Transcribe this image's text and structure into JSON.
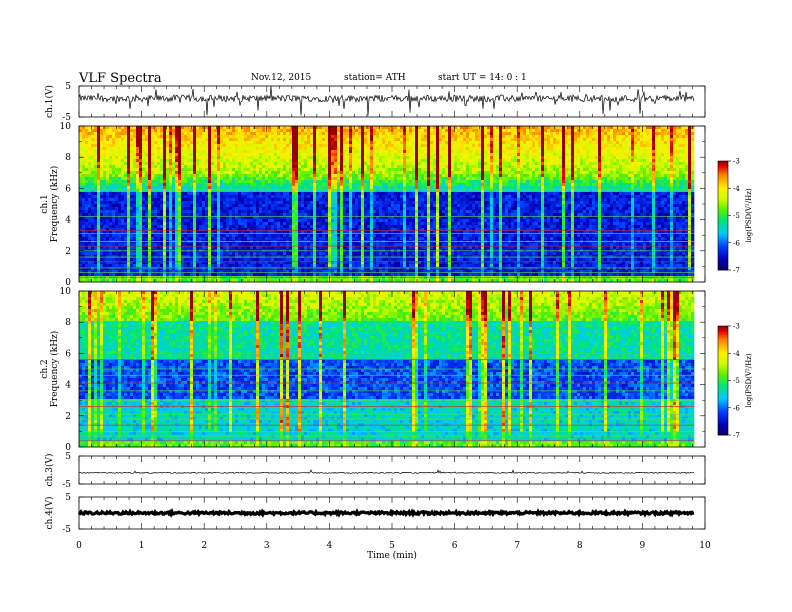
{
  "header": {
    "title": "VLF  Spectra",
    "date": "Nov.12, 2015",
    "station": "station= ATH",
    "start": "start  UT  =    14: 0   : 1"
  },
  "chart_data": [
    {
      "type": "line",
      "ylabel": "ch.1(V)",
      "ylim": [
        -5,
        5
      ],
      "yticks": [
        "5",
        "-5"
      ],
      "description_series": "ch.1 waveform, noisy trace around +1 V with negative spikes to about -5 V",
      "series": [
        {
          "values_range": [
            -5,
            5
          ]
        }
      ]
    },
    {
      "type": "heatmap",
      "ylabel": "ch.1\nFrequency  (kHz)",
      "ylim": [
        0,
        10
      ],
      "yticks": [
        "0",
        "2",
        "4",
        "6",
        "8",
        "10"
      ],
      "colorbar": {
        "label": "log(PSD(V²/Hz)",
        "range": [
          -7,
          -3
        ],
        "ticks": [
          "-3",
          "-4",
          "-5",
          "-6",
          "-7"
        ]
      }
    },
    {
      "type": "heatmap",
      "ylabel": "ch.2\nFrequency  (kHz)",
      "ylim": [
        0,
        10
      ],
      "yticks": [
        "0",
        "2",
        "4",
        "6",
        "8",
        "10"
      ],
      "colorbar": {
        "label": "log(PSD(V²/Hz)",
        "range": [
          -7,
          -3
        ],
        "ticks": [
          "-3",
          "-4",
          "-5",
          "-6",
          "-7"
        ]
      }
    },
    {
      "type": "line",
      "ylabel": "ch.3(V)",
      "ylim": [
        -5,
        5
      ],
      "yticks": [
        "5",
        "-5"
      ],
      "series": [
        {
          "values_range": [
            -1.5,
            -0.5
          ]
        }
      ]
    },
    {
      "type": "line",
      "ylabel": "ch.4(V)",
      "ylim": [
        -5,
        5
      ],
      "yticks": [
        "5",
        "-5"
      ],
      "series": [
        {
          "values_range": [
            -0.5,
            0.5
          ]
        }
      ]
    }
  ],
  "xaxis": {
    "label": "Time  (min)",
    "range": [
      0,
      10
    ],
    "ticks": [
      "0",
      "1",
      "2",
      "3",
      "4",
      "5",
      "6",
      "7",
      "8",
      "9",
      "10"
    ],
    "data_end": 9.83
  }
}
